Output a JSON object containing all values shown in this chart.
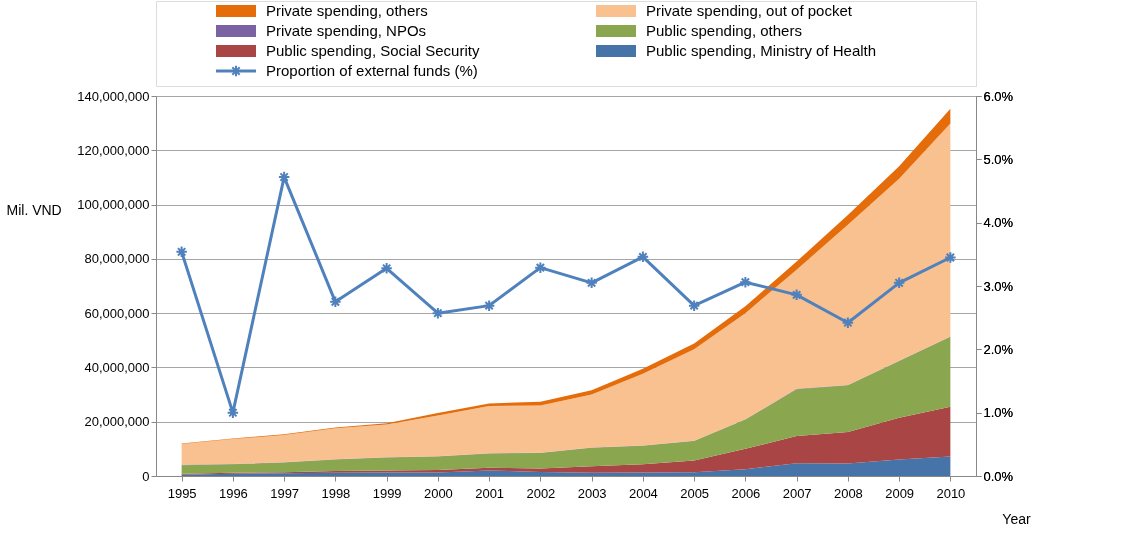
{
  "chart_data": {
    "type": "area",
    "stacked": true,
    "ylabel": "Mil. VND",
    "xlabel": "Year",
    "categories": [
      "1995",
      "1996",
      "1997",
      "1998",
      "1999",
      "2000",
      "2001",
      "2002",
      "2003",
      "2004",
      "2005",
      "2006",
      "2007",
      "2008",
      "2009",
      "2010"
    ],
    "series": [
      {
        "name": "Public spending, Ministry of Health",
        "color": "#4673a8",
        "values": [
          500000,
          800000,
          1000000,
          1200000,
          1300000,
          1300000,
          2000000,
          1500000,
          1200000,
          1300000,
          1400000,
          2500000,
          4700000,
          4600000,
          6100000,
          7200000
        ]
      },
      {
        "name": "Public spending, Social Security",
        "color": "#a94545",
        "values": [
          300000,
          400000,
          400000,
          600000,
          700000,
          900000,
          1000000,
          1300000,
          2400000,
          3000000,
          4300000,
          7500000,
          10000000,
          11600000,
          15400000,
          18300000
        ]
      },
      {
        "name": "Public spending, others",
        "color": "#8aa64f",
        "values": [
          3200000,
          3100000,
          3600000,
          4300000,
          4800000,
          5000000,
          5300000,
          5700000,
          6800000,
          6800000,
          7200000,
          10800000,
          17300000,
          17200000,
          20900000,
          25800000
        ]
      },
      {
        "name": "Private spending, NPOs",
        "color": "#7a62a3",
        "values": [
          100000,
          100000,
          100000,
          100000,
          100000,
          100000,
          100000,
          100000,
          100000,
          100000,
          100000,
          100000,
          100000,
          100000,
          100000,
          100000
        ]
      },
      {
        "name": "Private spending, out of pocket",
        "color": "#f9c090",
        "values": [
          7700000,
          9200000,
          10000000,
          11400000,
          12100000,
          15000000,
          17400000,
          17400000,
          19500000,
          26500000,
          33700000,
          39100000,
          43900000,
          59100000,
          67000000,
          78500000
        ]
      },
      {
        "name": "Private spending, others",
        "color": "#e46c0a",
        "values": [
          200000,
          200000,
          300000,
          300000,
          400000,
          900000,
          900000,
          1400000,
          1600000,
          1800000,
          2100000,
          2500000,
          3000000,
          3600000,
          4600000,
          5400000
        ]
      },
      {
        "name": "Proportion of external funds (%)",
        "type": "line",
        "axis": "y2",
        "color": "#4f81bd",
        "marker": "cross",
        "values": [
          3.54,
          1.0,
          4.72,
          2.75,
          3.28,
          2.57,
          2.69,
          3.29,
          3.05,
          3.46,
          2.69,
          3.06,
          2.86,
          2.42,
          3.05,
          3.45
        ]
      }
    ],
    "ylim": [
      0,
      140000000
    ],
    "yticks": [
      {
        "value": 0,
        "label": "0"
      },
      {
        "value": 20000000,
        "label": "20,000,000"
      },
      {
        "value": 40000000,
        "label": "40,000,000"
      },
      {
        "value": 60000000,
        "label": "60,000,000"
      },
      {
        "value": 80000000,
        "label": "80,000,000"
      },
      {
        "value": 100000000,
        "label": "100,000,000"
      },
      {
        "value": 120000000,
        "label": "120,000,000"
      },
      {
        "value": 140000000,
        "label": "140,000,000"
      }
    ],
    "y2lim": [
      0,
      6
    ],
    "y2ticks": [
      {
        "value": 0,
        "label": "0.0%"
      },
      {
        "value": 1,
        "label": "1.0%"
      },
      {
        "value": 2,
        "label": "2.0%"
      },
      {
        "value": 3,
        "label": "3.0%"
      },
      {
        "value": 4,
        "label": "4.0%"
      },
      {
        "value": 5,
        "label": "5.0%"
      },
      {
        "value": 6,
        "label": "6.0%"
      }
    ],
    "grid": "y",
    "legend": "top"
  }
}
